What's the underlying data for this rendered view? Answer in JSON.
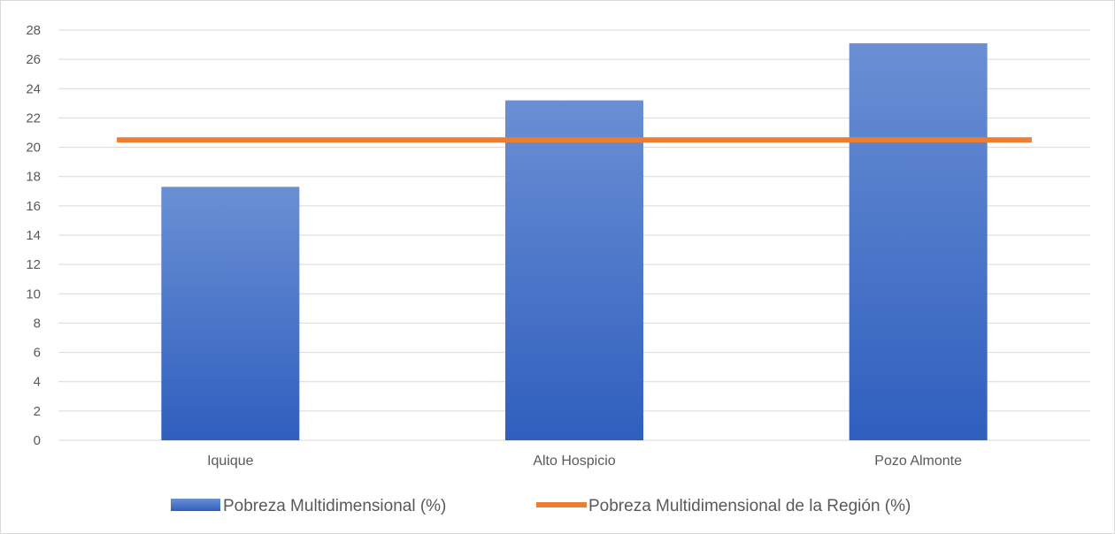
{
  "chart_data": {
    "type": "bar",
    "categories": [
      "Iquique",
      "Alto Hospicio",
      "Pozo Almonte"
    ],
    "series": [
      {
        "name": "Pobreza Multidimensional (%)",
        "type": "bar",
        "values": [
          17.3,
          23.2,
          27.1
        ],
        "color": "#4472C4"
      },
      {
        "name": "Pobreza Multidimensional de la Región (%)",
        "type": "line",
        "values": [
          20.5,
          20.5,
          20.5
        ],
        "color": "#ED7D31"
      }
    ],
    "ylim": [
      0,
      28
    ],
    "yticks": [
      0,
      2,
      4,
      6,
      8,
      10,
      12,
      14,
      16,
      18,
      20,
      22,
      24,
      26,
      28
    ],
    "grid": true,
    "legend_position": "bottom",
    "colors": {
      "bar_light": "#6A8FD4",
      "bar_dark": "#2F5FBE",
      "grid": "#d9d9d9",
      "text": "#595959"
    }
  }
}
